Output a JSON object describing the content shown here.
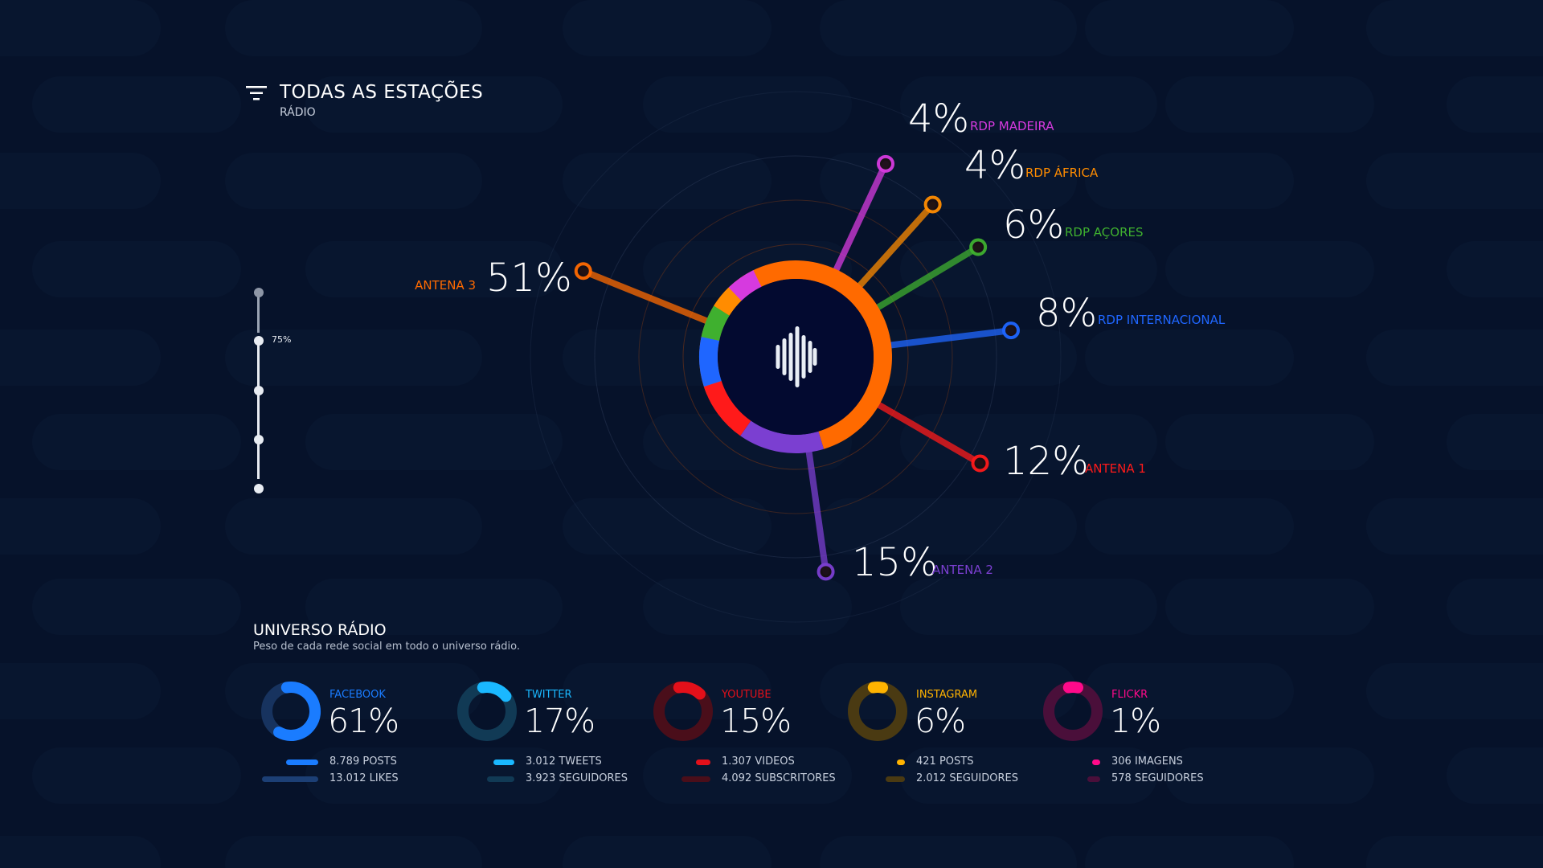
{
  "header": {
    "title": "TODAS AS ESTAÇÕES",
    "subtitle": "RÁDIO",
    "filter_icon": "filter-icon"
  },
  "slider": {
    "label": "75%",
    "value_fraction": 0.75,
    "stops": 5
  },
  "colors": {
    "background": "#06122a",
    "antena3": "#ff6a00",
    "antena2": "#7b3fd1",
    "antena1": "#ff1010",
    "internacional": "#1a5cff",
    "acores": "#3fb02f",
    "africa": "#ff8c00",
    "madeira": "#d63adf"
  },
  "stations": [
    {
      "key": "antena3",
      "name": "ANTENA 3",
      "pct": "51%",
      "value": 51,
      "color": "#ff6a00"
    },
    {
      "key": "antena2",
      "name": "ANTENA 2",
      "pct": "15%",
      "value": 15,
      "color": "#7b3fd1"
    },
    {
      "key": "antena1",
      "name": "ANTENA 1",
      "pct": "12%",
      "value": 12,
      "color": "#ff1a1a"
    },
    {
      "key": "internacional",
      "name": "RDP INTERNACIONAL",
      "pct": "8%",
      "value": 8,
      "color": "#1f66ff"
    },
    {
      "key": "acores",
      "name": "RDP AÇORES",
      "pct": "6%",
      "value": 6,
      "color": "#3fb02f"
    },
    {
      "key": "africa",
      "name": "RDP ÁFRICA",
      "pct": "4%",
      "value": 4,
      "color": "#ff8c00"
    },
    {
      "key": "madeira",
      "name": "RDP MADEIRA",
      "pct": "4%",
      "value": 4,
      "color": "#d63adf"
    }
  ],
  "center_icon": "audio-wave-icon",
  "universo": {
    "title": "UNIVERSO RÁDIO",
    "subtitle": "Peso de cada rede social em todo o universo rádio."
  },
  "socials": [
    {
      "name": "FACEBOOK",
      "pct": "61%",
      "value": 61,
      "color": "#1a7cff",
      "dim": "#17335f",
      "m1": "8.789 POSTS",
      "m2": "13.012 LIKES"
    },
    {
      "name": "TWITTER",
      "pct": "17%",
      "value": 17,
      "color": "#1ab8ff",
      "dim": "#113a55",
      "m1": "3.012 TWEETS",
      "m2": "3.923 SEGUIDORES"
    },
    {
      "name": "YOUTUBE",
      "pct": "15%",
      "value": 15,
      "color": "#e3101a",
      "dim": "#4a0e1a",
      "m1": "1.307 VIDEOS",
      "m2": "4.092 SUBSCRITORES"
    },
    {
      "name": "INSTAGRAM",
      "pct": "6%",
      "value": 6,
      "color": "#ffb300",
      "dim": "#4a3a12",
      "m1": "421 POSTS",
      "m2": "2.012 SEGUIDORES"
    },
    {
      "name": "FLICKR",
      "pct": "1%",
      "value": 1,
      "color": "#ff0a8a",
      "dim": "#4a0f3a",
      "m1": "306 IMAGENS",
      "m2": "578 SEGUIDORES"
    }
  ]
}
